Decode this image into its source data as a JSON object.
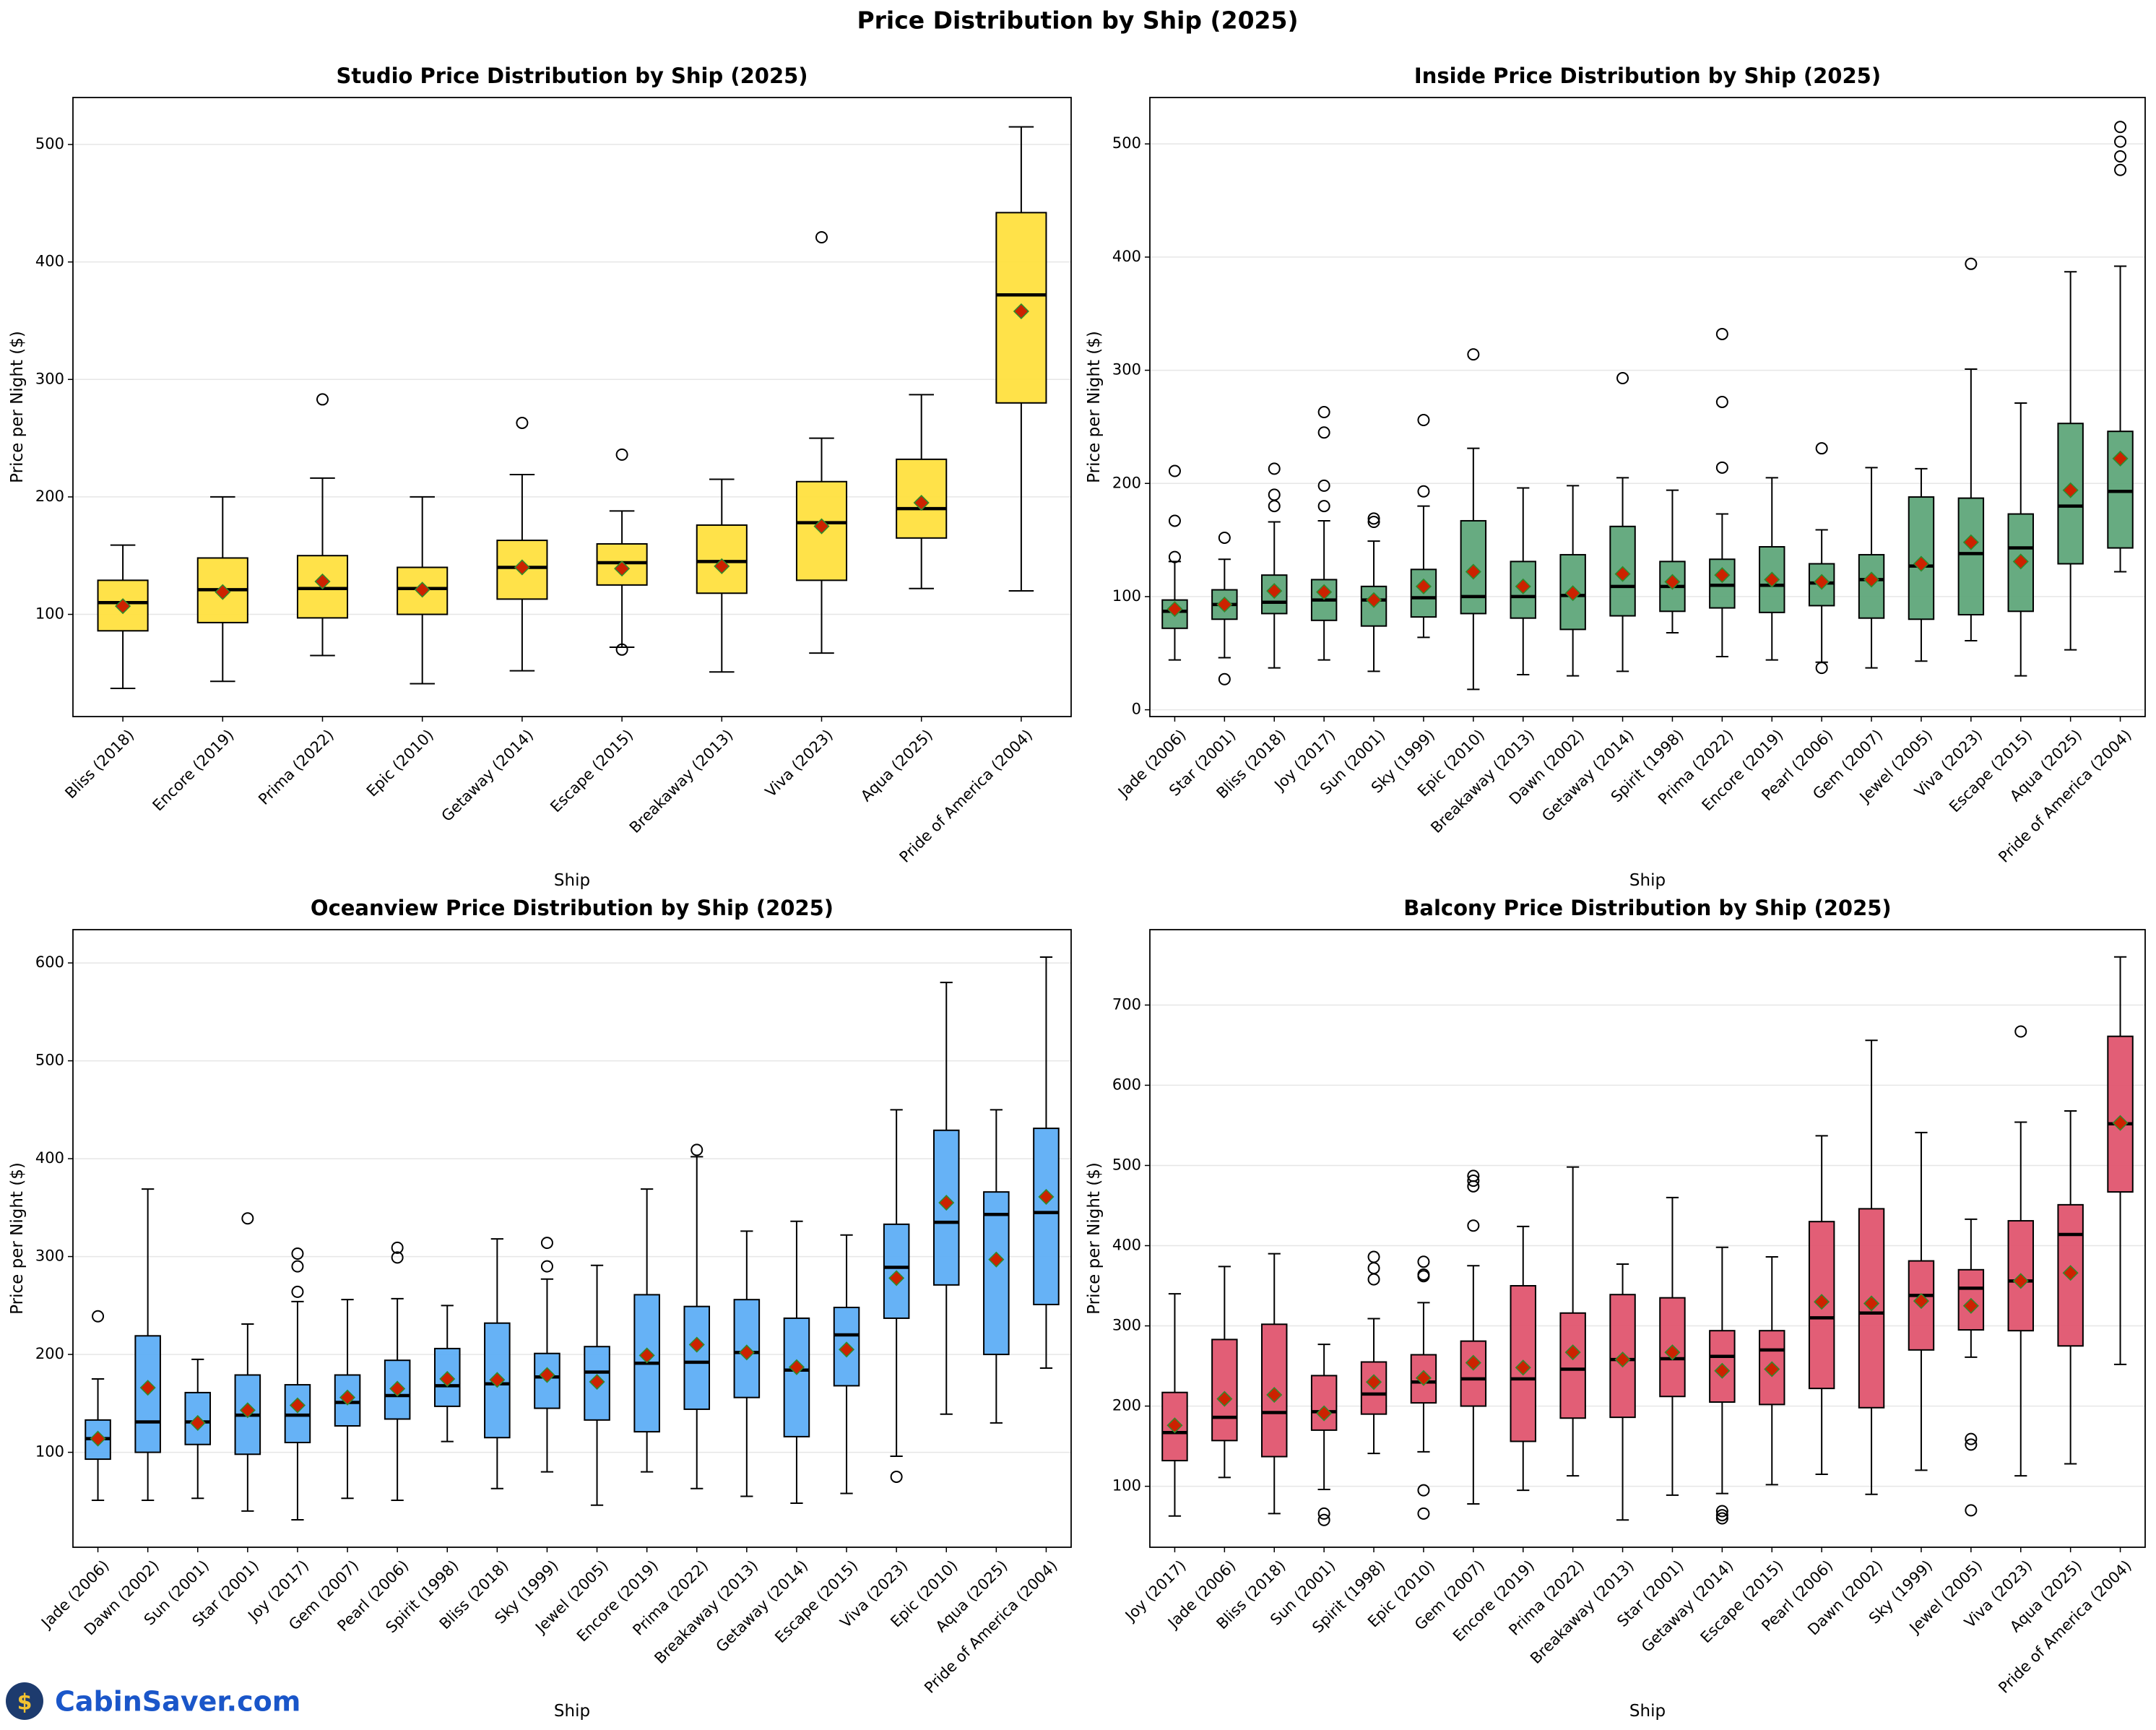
{
  "title": "Price Distribution by Ship (2025)",
  "watermark": "CabinSaver.com",
  "chart_data": [
    {
      "type": "box",
      "title": "Studio Price Distribution by Ship (2025)",
      "x_label": "Ship",
      "y_label": "Price per Night ($)",
      "color": "#ffe03f",
      "mean_color": "#cc2200",
      "grid": true,
      "ylim": [
        13,
        540
      ],
      "yticks": [
        100,
        200,
        300,
        400,
        500
      ],
      "categories": [
        "Bliss (2018)",
        "Encore (2019)",
        "Prima (2022)",
        "Epic (2010)",
        "Getaway (2014)",
        "Escape (2015)",
        "Breakaway (2013)",
        "Viva (2023)",
        "Aqua (2025)",
        "Pride of America (2004)"
      ],
      "boxes": [
        {
          "low": 37,
          "q1": 86,
          "median": 110,
          "q3": 129,
          "high": 159,
          "mean": 107,
          "outliers": []
        },
        {
          "low": 43,
          "q1": 93,
          "median": 121,
          "q3": 148,
          "high": 200,
          "mean": 119,
          "outliers": []
        },
        {
          "low": 65,
          "q1": 97,
          "median": 122,
          "q3": 150,
          "high": 216,
          "mean": 128,
          "outliers": [
            283
          ]
        },
        {
          "low": 41,
          "q1": 100,
          "median": 122,
          "q3": 140,
          "high": 200,
          "mean": 121,
          "outliers": []
        },
        {
          "low": 52,
          "q1": 113,
          "median": 140,
          "q3": 163,
          "high": 219,
          "mean": 140,
          "outliers": [
            263
          ]
        },
        {
          "low": 72,
          "q1": 125,
          "median": 144,
          "q3": 160,
          "high": 188,
          "mean": 139,
          "outliers": [
            236,
            70
          ]
        },
        {
          "low": 51,
          "q1": 118,
          "median": 145,
          "q3": 176,
          "high": 215,
          "mean": 141,
          "outliers": []
        },
        {
          "low": 67,
          "q1": 129,
          "median": 178,
          "q3": 213,
          "high": 250,
          "mean": 175,
          "outliers": [
            421
          ]
        },
        {
          "low": 122,
          "q1": 165,
          "median": 190,
          "q3": 232,
          "high": 287,
          "mean": 195,
          "outliers": []
        },
        {
          "low": 120,
          "q1": 280,
          "median": 372,
          "q3": 442,
          "high": 515,
          "mean": 358,
          "outliers": []
        }
      ]
    },
    {
      "type": "box",
      "title": "Inside Price Distribution by Ship (2025)",
      "x_label": "Ship",
      "y_label": "Price per Night ($)",
      "color": "#5fa77a",
      "mean_color": "#cc2200",
      "grid": true,
      "ylim": [
        -6,
        541
      ],
      "yticks": [
        0,
        100,
        200,
        300,
        400,
        500
      ],
      "categories": [
        "Jade (2006)",
        "Star (2001)",
        "Bliss (2018)",
        "Joy (2017)",
        "Sun (2001)",
        "Sky (1999)",
        "Epic (2010)",
        "Breakaway (2013)",
        "Dawn (2002)",
        "Getaway (2014)",
        "Spirit (1998)",
        "Prima (2022)",
        "Encore (2019)",
        "Pearl (2006)",
        "Gem (2007)",
        "Jewel (2005)",
        "Viva (2023)",
        "Escape (2015)",
        "Aqua (2025)",
        "Pride of America (2004)"
      ],
      "boxes": [
        {
          "low": 44,
          "q1": 72,
          "median": 87,
          "q3": 97,
          "high": 131,
          "mean": 89,
          "outliers": [
            135,
            167,
            211
          ]
        },
        {
          "low": 46,
          "q1": 80,
          "median": 93,
          "q3": 106,
          "high": 133,
          "mean": 93,
          "outliers": [
            27,
            152
          ]
        },
        {
          "low": 37,
          "q1": 85,
          "median": 95,
          "q3": 119,
          "high": 166,
          "mean": 105,
          "outliers": [
            180,
            190,
            213
          ]
        },
        {
          "low": 44,
          "q1": 79,
          "median": 97,
          "q3": 115,
          "high": 167,
          "mean": 104,
          "outliers": [
            180,
            198,
            245,
            263
          ]
        },
        {
          "low": 34,
          "q1": 74,
          "median": 97,
          "q3": 109,
          "high": 149,
          "mean": 97,
          "outliers": [
            166,
            169
          ]
        },
        {
          "low": 64,
          "q1": 82,
          "median": 99,
          "q3": 124,
          "high": 180,
          "mean": 109,
          "outliers": [
            193,
            256
          ]
        },
        {
          "low": 18,
          "q1": 85,
          "median": 100,
          "q3": 167,
          "high": 231,
          "mean": 122,
          "outliers": [
            314
          ]
        },
        {
          "low": 31,
          "q1": 81,
          "median": 100,
          "q3": 131,
          "high": 196,
          "mean": 109,
          "outliers": []
        },
        {
          "low": 30,
          "q1": 71,
          "median": 101,
          "q3": 137,
          "high": 198,
          "mean": 103,
          "outliers": []
        },
        {
          "low": 34,
          "q1": 83,
          "median": 109,
          "q3": 162,
          "high": 205,
          "mean": 120,
          "outliers": [
            293
          ]
        },
        {
          "low": 68,
          "q1": 87,
          "median": 109,
          "q3": 131,
          "high": 194,
          "mean": 113,
          "outliers": []
        },
        {
          "low": 47,
          "q1": 90,
          "median": 110,
          "q3": 133,
          "high": 173,
          "mean": 119,
          "outliers": [
            214,
            272,
            332
          ]
        },
        {
          "low": 44,
          "q1": 86,
          "median": 110,
          "q3": 144,
          "high": 205,
          "mean": 115,
          "outliers": []
        },
        {
          "low": 42,
          "q1": 92,
          "median": 112,
          "q3": 129,
          "high": 159,
          "mean": 113,
          "outliers": [
            37,
            231
          ]
        },
        {
          "low": 37,
          "q1": 81,
          "median": 115,
          "q3": 137,
          "high": 214,
          "mean": 115,
          "outliers": []
        },
        {
          "low": 43,
          "q1": 80,
          "median": 127,
          "q3": 188,
          "high": 213,
          "mean": 129,
          "outliers": []
        },
        {
          "low": 61,
          "q1": 84,
          "median": 138,
          "q3": 187,
          "high": 301,
          "mean": 148,
          "outliers": [
            394
          ]
        },
        {
          "low": 30,
          "q1": 87,
          "median": 143,
          "q3": 173,
          "high": 271,
          "mean": 131,
          "outliers": []
        },
        {
          "low": 53,
          "q1": 129,
          "median": 180,
          "q3": 253,
          "high": 387,
          "mean": 194,
          "outliers": []
        },
        {
          "low": 122,
          "q1": 143,
          "median": 193,
          "q3": 246,
          "high": 392,
          "mean": 222,
          "outliers": [
            477,
            489,
            502,
            515
          ]
        }
      ]
    },
    {
      "type": "box",
      "title": "Oceanview Price Distribution by Ship (2025)",
      "x_label": "Ship",
      "y_label": "Price per Night ($)",
      "color": "#5eaef6",
      "mean_color": "#cc2200",
      "grid": true,
      "ylim": [
        3,
        634
      ],
      "yticks": [
        100,
        200,
        300,
        400,
        500,
        600
      ],
      "categories": [
        "Jade (2006)",
        "Dawn (2002)",
        "Sun (2001)",
        "Star (2001)",
        "Joy (2017)",
        "Gem (2007)",
        "Pearl (2006)",
        "Spirit (1998)",
        "Bliss (2018)",
        "Sky (1999)",
        "Jewel (2005)",
        "Encore (2019)",
        "Prima (2022)",
        "Breakaway (2013)",
        "Getaway (2014)",
        "Escape (2015)",
        "Viva (2023)",
        "Epic (2010)",
        "Aqua (2025)",
        "Pride of America (2004)"
      ],
      "boxes": [
        {
          "low": 51,
          "q1": 93,
          "median": 114,
          "q3": 133,
          "high": 175,
          "mean": 114,
          "outliers": [
            239
          ]
        },
        {
          "low": 51,
          "q1": 100,
          "median": 131,
          "q3": 219,
          "high": 369,
          "mean": 166,
          "outliers": []
        },
        {
          "low": 53,
          "q1": 108,
          "median": 131,
          "q3": 161,
          "high": 195,
          "mean": 130,
          "outliers": []
        },
        {
          "low": 40,
          "q1": 98,
          "median": 138,
          "q3": 179,
          "high": 231,
          "mean": 143,
          "outliers": [
            339
          ]
        },
        {
          "low": 31,
          "q1": 110,
          "median": 138,
          "q3": 169,
          "high": 254,
          "mean": 148,
          "outliers": [
            264,
            290,
            303
          ]
        },
        {
          "low": 53,
          "q1": 127,
          "median": 151,
          "q3": 179,
          "high": 256,
          "mean": 156,
          "outliers": []
        },
        {
          "low": 51,
          "q1": 134,
          "median": 158,
          "q3": 194,
          "high": 257,
          "mean": 165,
          "outliers": [
            299,
            309
          ]
        },
        {
          "low": 111,
          "q1": 147,
          "median": 168,
          "q3": 206,
          "high": 250,
          "mean": 175,
          "outliers": []
        },
        {
          "low": 63,
          "q1": 115,
          "median": 170,
          "q3": 232,
          "high": 318,
          "mean": 174,
          "outliers": []
        },
        {
          "low": 80,
          "q1": 145,
          "median": 177,
          "q3": 201,
          "high": 277,
          "mean": 179,
          "outliers": [
            290,
            314
          ]
        },
        {
          "low": 46,
          "q1": 133,
          "median": 182,
          "q3": 208,
          "high": 291,
          "mean": 172,
          "outliers": []
        },
        {
          "low": 80,
          "q1": 121,
          "median": 191,
          "q3": 261,
          "high": 369,
          "mean": 199,
          "outliers": []
        },
        {
          "low": 63,
          "q1": 144,
          "median": 192,
          "q3": 249,
          "high": 402,
          "mean": 210,
          "outliers": [
            409
          ]
        },
        {
          "low": 55,
          "q1": 156,
          "median": 202,
          "q3": 256,
          "high": 326,
          "mean": 202,
          "outliers": []
        },
        {
          "low": 48,
          "q1": 116,
          "median": 184,
          "q3": 237,
          "high": 336,
          "mean": 187,
          "outliers": []
        },
        {
          "low": 58,
          "q1": 168,
          "median": 220,
          "q3": 248,
          "high": 322,
          "mean": 205,
          "outliers": []
        },
        {
          "low": 96,
          "q1": 237,
          "median": 289,
          "q3": 333,
          "high": 450,
          "mean": 278,
          "outliers": [
            75
          ]
        },
        {
          "low": 139,
          "q1": 271,
          "median": 335,
          "q3": 429,
          "high": 580,
          "mean": 355,
          "outliers": []
        },
        {
          "low": 130,
          "q1": 200,
          "median": 343,
          "q3": 366,
          "high": 450,
          "mean": 297,
          "outliers": []
        },
        {
          "low": 186,
          "q1": 251,
          "median": 345,
          "q3": 431,
          "high": 606,
          "mean": 361,
          "outliers": []
        }
      ]
    },
    {
      "type": "box",
      "title": "Balcony Price Distribution by Ship (2025)",
      "x_label": "Ship",
      "y_label": "Price per Night ($)",
      "color": "#e0556f",
      "mean_color": "#cc2200",
      "grid": true,
      "ylim": [
        24,
        794
      ],
      "yticks": [
        100,
        200,
        300,
        400,
        500,
        600,
        700
      ],
      "categories": [
        "Joy (2017)",
        "Jade (2006)",
        "Bliss (2018)",
        "Sun (2001)",
        "Spirit (1998)",
        "Epic (2010)",
        "Gem (2007)",
        "Encore (2019)",
        "Prima (2022)",
        "Breakaway (2013)",
        "Star (2001)",
        "Getaway (2014)",
        "Escape (2015)",
        "Pearl (2006)",
        "Dawn (2002)",
        "Sky (1999)",
        "Jewel (2005)",
        "Viva (2023)",
        "Aqua (2025)",
        "Pride of America (2004)"
      ],
      "boxes": [
        {
          "low": 63,
          "q1": 132,
          "median": 167,
          "q3": 217,
          "high": 340,
          "mean": 176,
          "outliers": []
        },
        {
          "low": 111,
          "q1": 157,
          "median": 186,
          "q3": 283,
          "high": 374,
          "mean": 209,
          "outliers": []
        },
        {
          "low": 66,
          "q1": 137,
          "median": 192,
          "q3": 302,
          "high": 390,
          "mean": 214,
          "outliers": []
        },
        {
          "low": 96,
          "q1": 170,
          "median": 193,
          "q3": 238,
          "high": 277,
          "mean": 191,
          "outliers": [
            58,
            66
          ]
        },
        {
          "low": 141,
          "q1": 190,
          "median": 215,
          "q3": 255,
          "high": 309,
          "mean": 230,
          "outliers": [
            358,
            372,
            386
          ]
        },
        {
          "low": 143,
          "q1": 204,
          "median": 230,
          "q3": 264,
          "high": 329,
          "mean": 235,
          "outliers": [
            66,
            95,
            362,
            364,
            380
          ]
        },
        {
          "low": 78,
          "q1": 200,
          "median": 234,
          "q3": 281,
          "high": 375,
          "mean": 254,
          "outliers": [
            425,
            474,
            481,
            487
          ]
        },
        {
          "low": 95,
          "q1": 156,
          "median": 234,
          "q3": 350,
          "high": 424,
          "mean": 248,
          "outliers": []
        },
        {
          "low": 113,
          "q1": 185,
          "median": 246,
          "q3": 316,
          "high": 498,
          "mean": 267,
          "outliers": []
        },
        {
          "low": 58,
          "q1": 186,
          "median": 258,
          "q3": 339,
          "high": 377,
          "mean": 258,
          "outliers": []
        },
        {
          "low": 89,
          "q1": 212,
          "median": 259,
          "q3": 335,
          "high": 460,
          "mean": 267,
          "outliers": []
        },
        {
          "low": 91,
          "q1": 205,
          "median": 262,
          "q3": 294,
          "high": 398,
          "mean": 244,
          "outliers": [
            60,
            64,
            69
          ]
        },
        {
          "low": 102,
          "q1": 202,
          "median": 270,
          "q3": 294,
          "high": 386,
          "mean": 246,
          "outliers": []
        },
        {
          "low": 115,
          "q1": 222,
          "median": 310,
          "q3": 430,
          "high": 537,
          "mean": 330,
          "outliers": []
        },
        {
          "low": 90,
          "q1": 198,
          "median": 316,
          "q3": 446,
          "high": 656,
          "mean": 328,
          "outliers": []
        },
        {
          "low": 120,
          "q1": 270,
          "median": 338,
          "q3": 381,
          "high": 541,
          "mean": 331,
          "outliers": []
        },
        {
          "low": 261,
          "q1": 295,
          "median": 347,
          "q3": 370,
          "high": 433,
          "mean": 325,
          "outliers": [
            70,
            152,
            159
          ]
        },
        {
          "low": 113,
          "q1": 294,
          "median": 356,
          "q3": 431,
          "high": 554,
          "mean": 356,
          "outliers": [
            667
          ]
        },
        {
          "low": 128,
          "q1": 275,
          "median": 414,
          "q3": 451,
          "high": 568,
          "mean": 366,
          "outliers": []
        },
        {
          "low": 252,
          "q1": 467,
          "median": 552,
          "q3": 661,
          "high": 760,
          "mean": 553,
          "outliers": []
        }
      ]
    }
  ]
}
